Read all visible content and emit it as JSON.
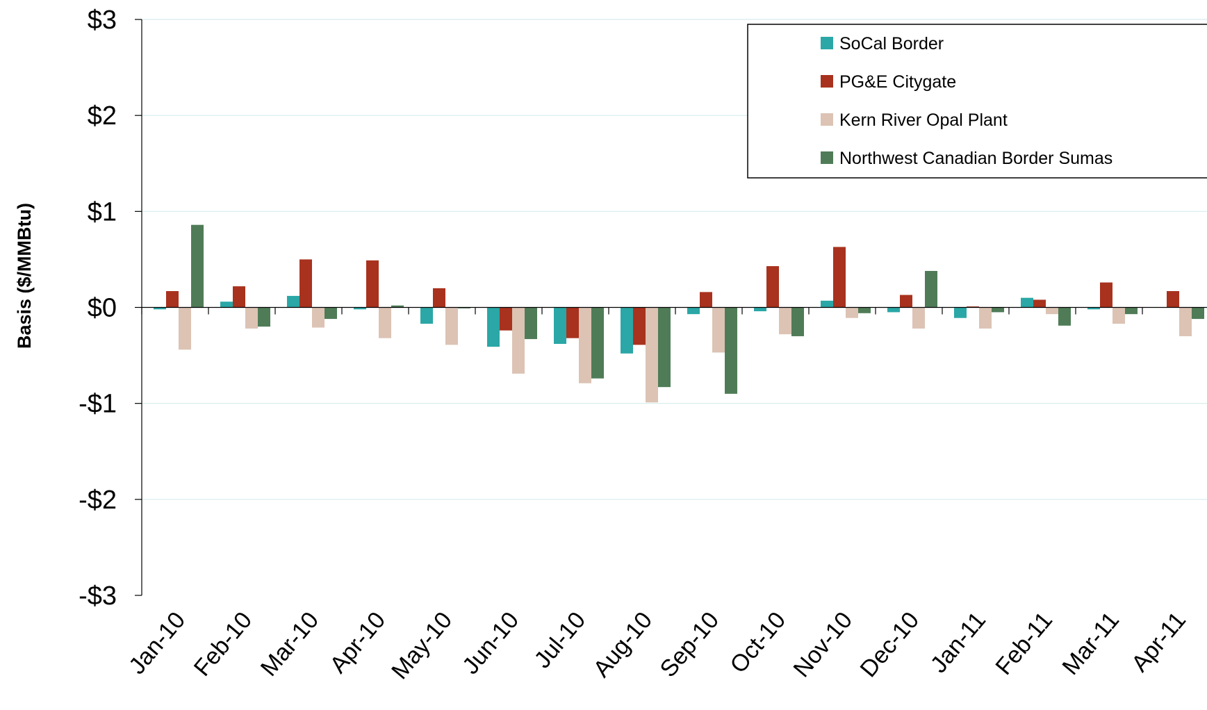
{
  "chart_data": {
    "type": "bar",
    "title": "",
    "xlabel": "",
    "ylabel": "Basis ($/MMBtu)",
    "ylim": [
      -3,
      3
    ],
    "ytick_values": [
      3,
      2,
      1,
      0,
      -1,
      -2,
      -3
    ],
    "ytick_labels": [
      "$3",
      "$2",
      "$1",
      "$0",
      "-$1",
      "-$2",
      "-$3"
    ],
    "grid": true,
    "legend_position": "top-right",
    "categories": [
      "Jan-10",
      "Feb-10",
      "Mar-10",
      "Apr-10",
      "May-10",
      "Jun-10",
      "Jul-10",
      "Aug-10",
      "Sep-10",
      "Oct-10",
      "Nov-10",
      "Dec-10",
      "Jan-11",
      "Feb-11",
      "Mar-11",
      "Apr-11"
    ],
    "series": [
      {
        "name": "SoCal Border",
        "color": "#2aa7a6",
        "values": [
          -0.02,
          0.06,
          0.12,
          -0.02,
          -0.17,
          -0.41,
          -0.38,
          -0.48,
          -0.07,
          -0.04,
          0.07,
          -0.05,
          -0.11,
          0.1,
          -0.02,
          0.0
        ]
      },
      {
        "name": "PG&E Citygate",
        "color": "#a8321e",
        "values": [
          0.17,
          0.22,
          0.5,
          0.49,
          0.2,
          -0.24,
          -0.32,
          -0.39,
          0.16,
          0.43,
          0.63,
          0.13,
          0.01,
          0.08,
          0.26,
          0.17
        ]
      },
      {
        "name": "Kern River Opal Plant",
        "color": "#dcc3b4",
        "values": [
          -0.44,
          -0.22,
          -0.21,
          -0.32,
          -0.39,
          -0.69,
          -0.79,
          -0.99,
          -0.47,
          -0.28,
          -0.11,
          -0.22,
          -0.22,
          -0.07,
          -0.17,
          -0.3
        ]
      },
      {
        "name": "Northwest Canadian Border Sumas",
        "color": "#4f7c57",
        "values": [
          0.86,
          -0.2,
          -0.12,
          0.02,
          -0.01,
          -0.33,
          -0.74,
          -0.83,
          -0.9,
          -0.3,
          -0.06,
          0.38,
          -0.05,
          -0.19,
          -0.07,
          -0.12
        ]
      }
    ]
  }
}
